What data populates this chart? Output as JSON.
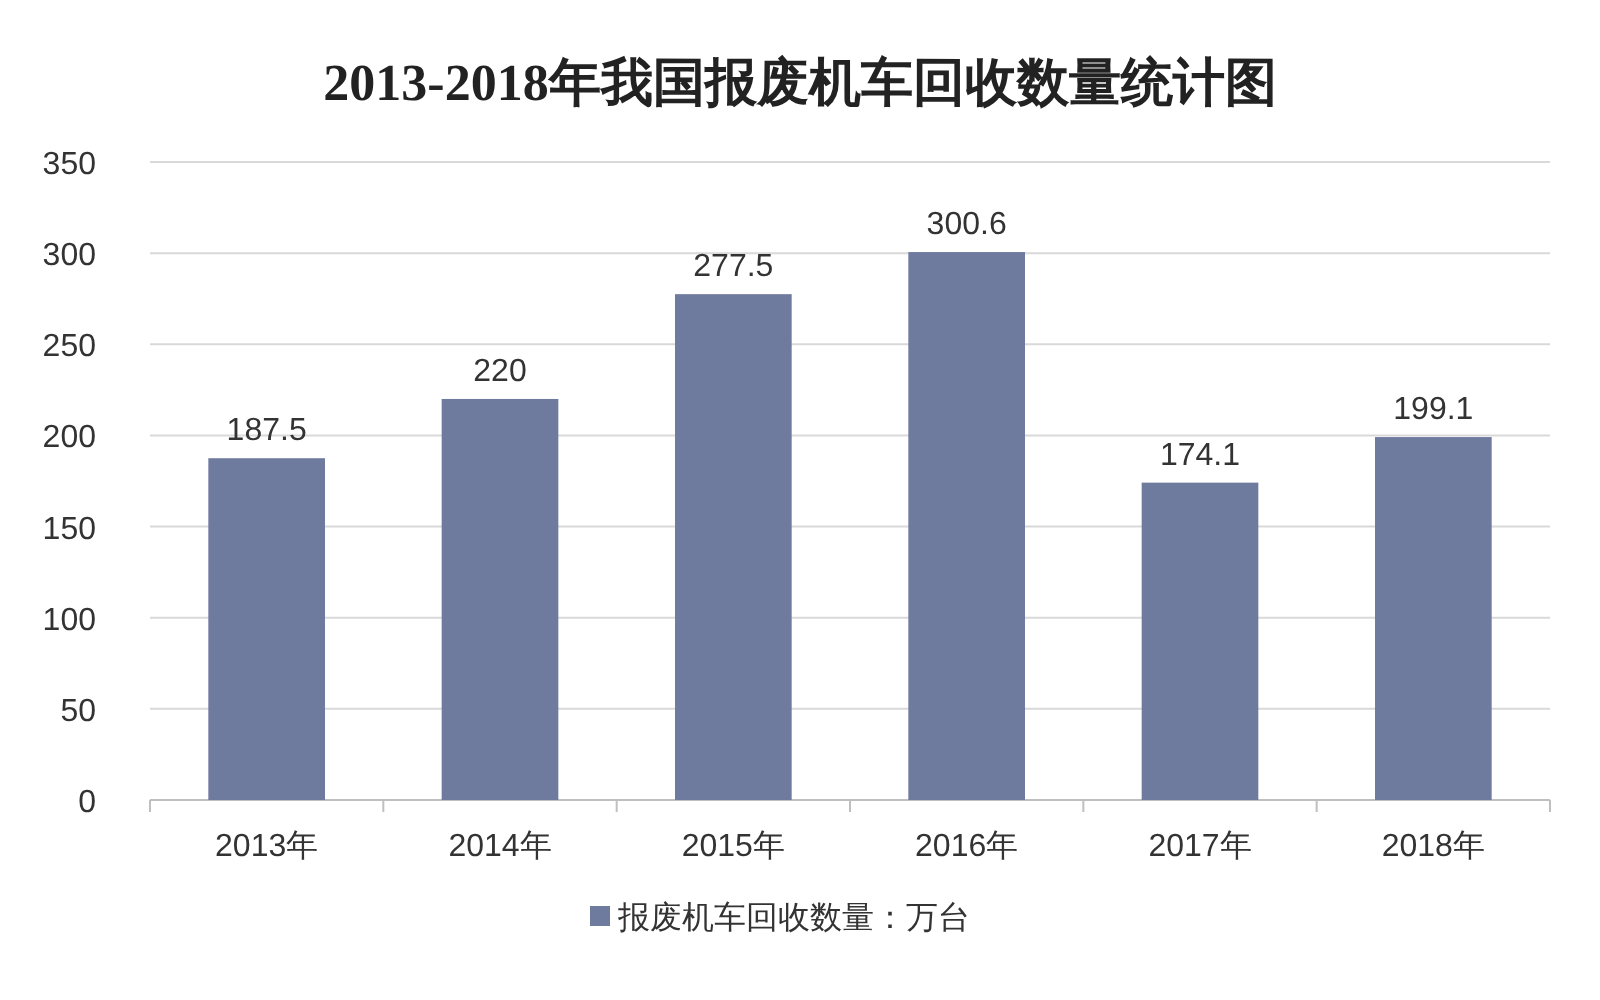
{
  "chart_data": {
    "type": "bar",
    "title": "2013-2018年我国报废机车回收数量统计图",
    "categories": [
      "2013年",
      "2014年",
      "2015年",
      "2016年",
      "2017年",
      "2018年"
    ],
    "series": [
      {
        "name": "报废机车回收数量：万台",
        "color": "#6f7a9f",
        "values": [
          187.5,
          220,
          277.5,
          300.6,
          174.1,
          199.1
        ]
      }
    ],
    "ylim": [
      0,
      350
    ],
    "yticks": [
      0,
      50,
      100,
      150,
      200,
      250,
      300,
      350
    ],
    "grid": "y",
    "legend": "bottom",
    "data_labels": true
  }
}
